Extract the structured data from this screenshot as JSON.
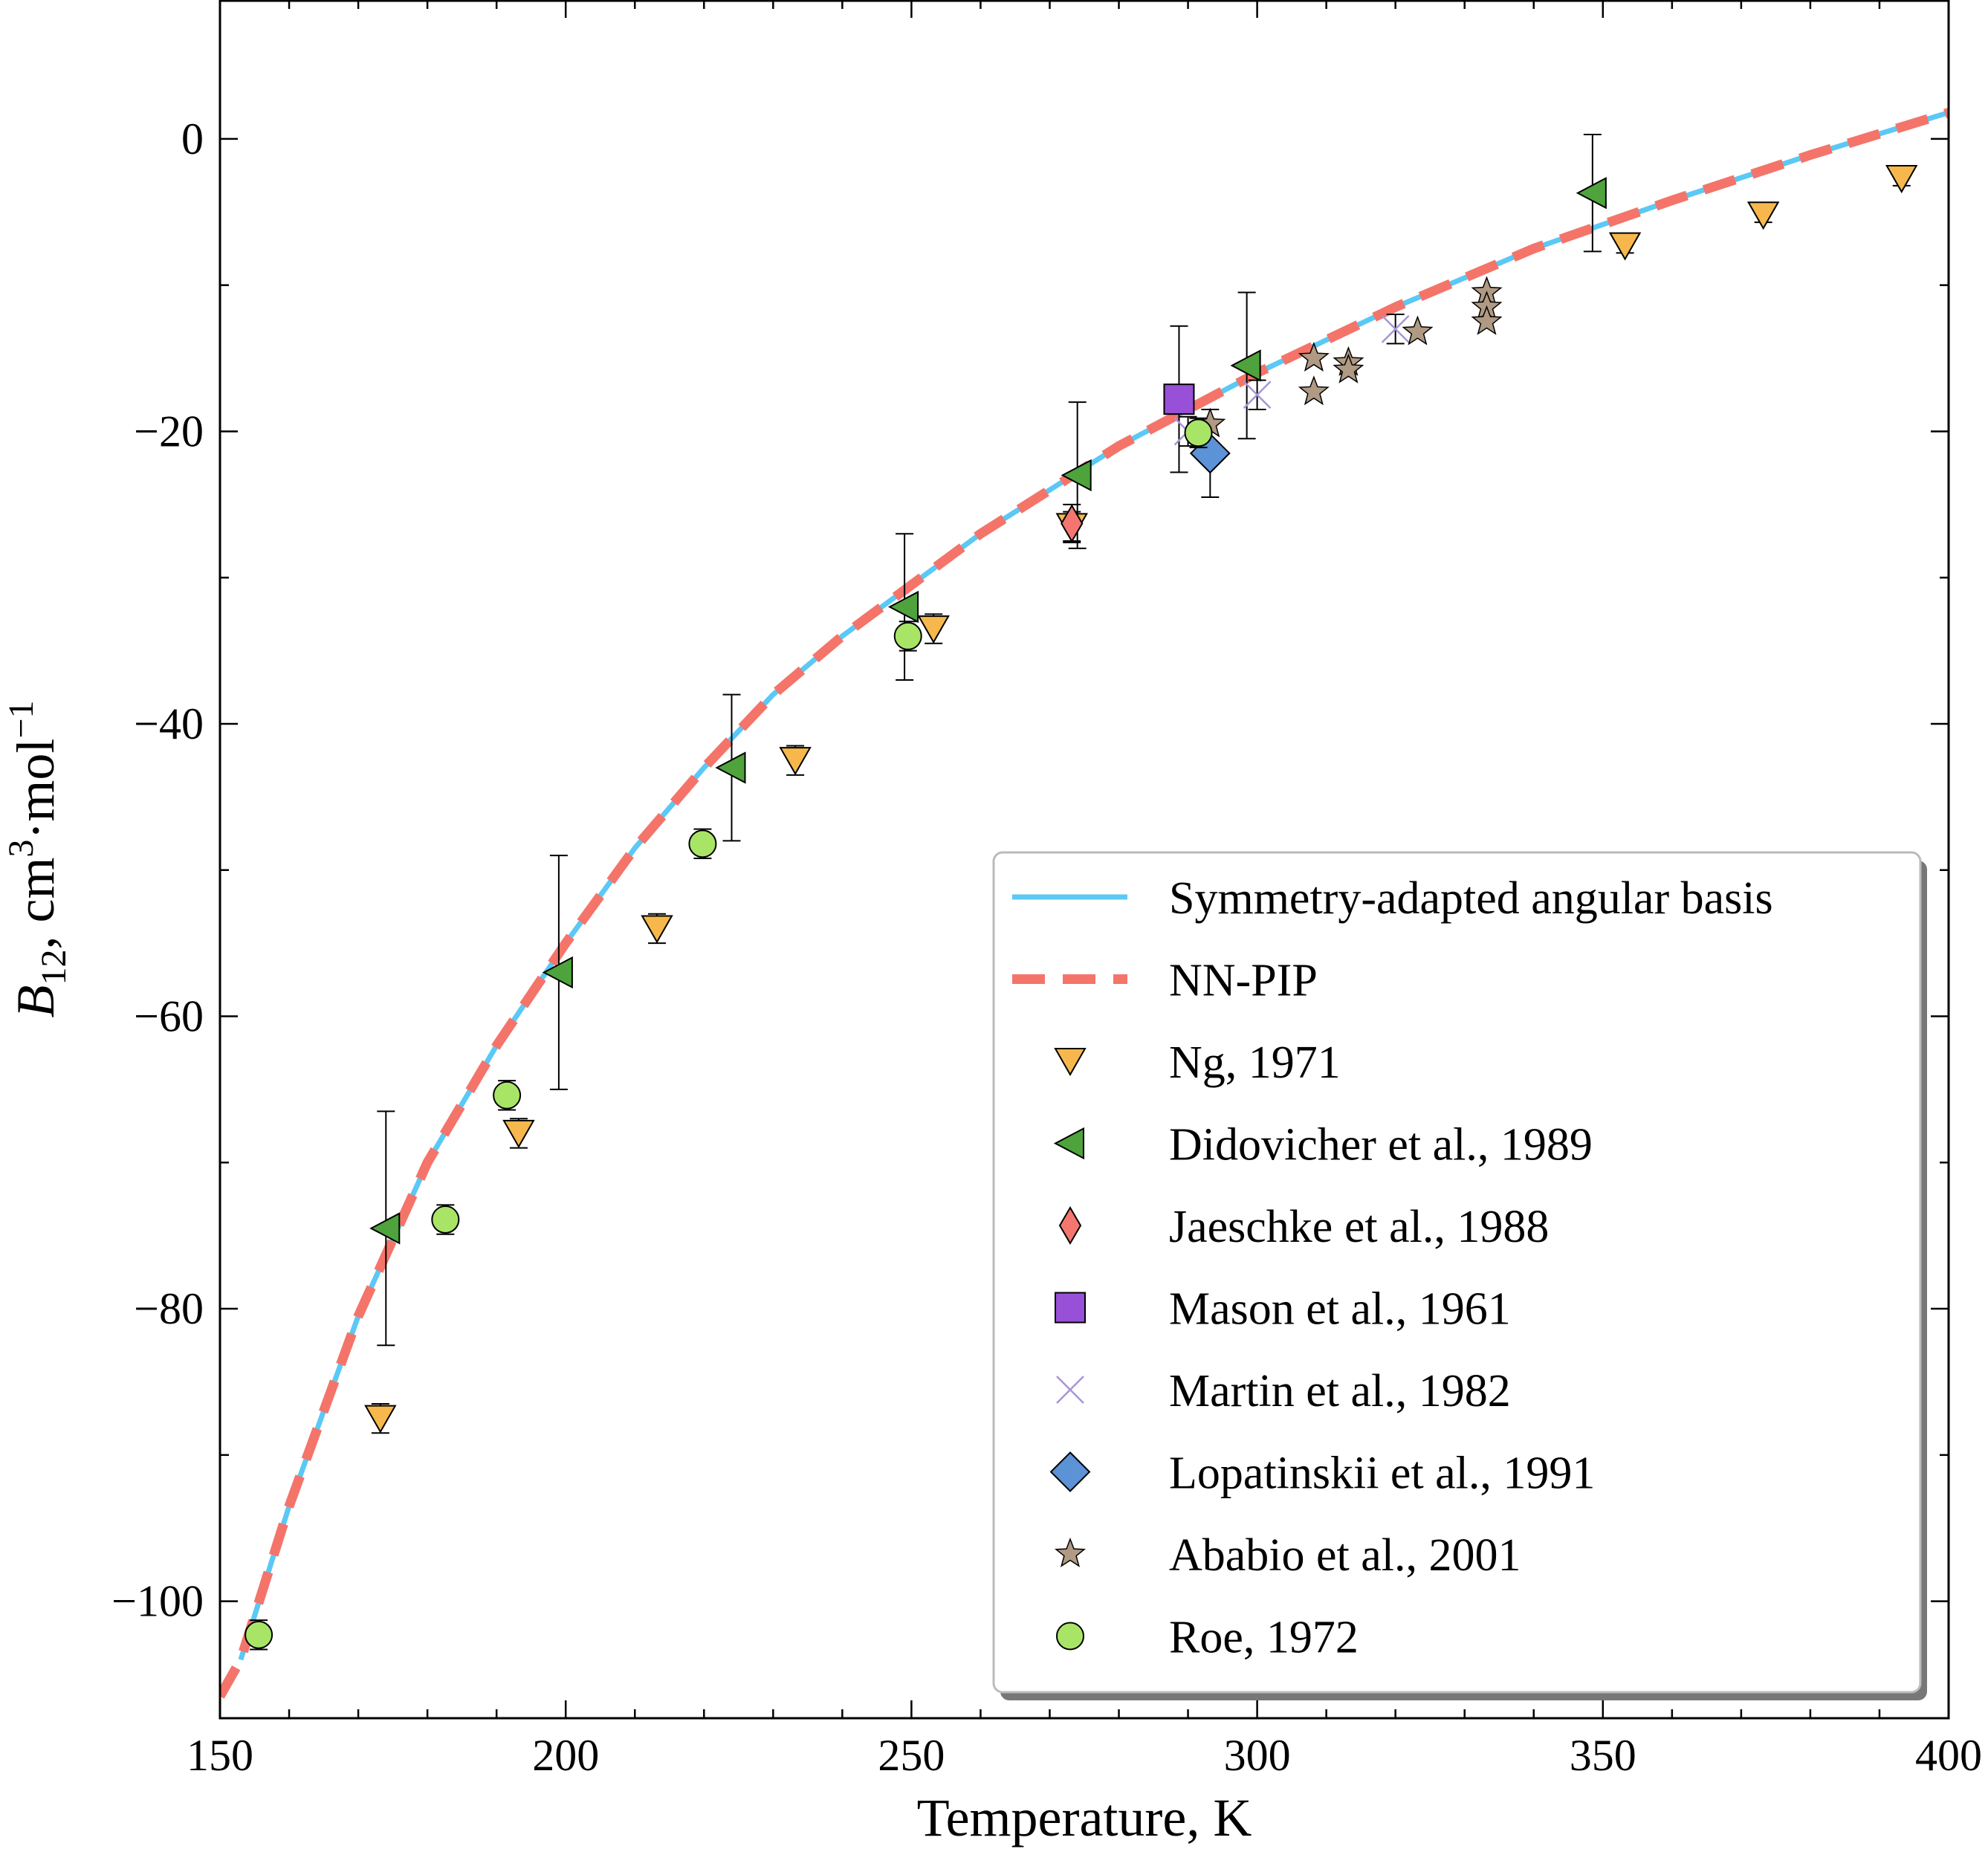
{
  "chart_data": {
    "type": "scatter",
    "xlabel": "Temperature, K",
    "ylabel_parts": {
      "symbol": "B",
      "subscript": "12",
      "unit_a": ", cm",
      "sup_a": "3",
      "unit_b": "·mol",
      "sup_b": "−1"
    },
    "xlim": [
      150,
      400
    ],
    "ylim": [
      -108,
      9.5
    ],
    "x_ticks": [
      150,
      200,
      250,
      300,
      350,
      400
    ],
    "x_tick_labels": [
      "150",
      "200",
      "250",
      "300",
      "350",
      "400"
    ],
    "y_ticks": [
      0,
      -20,
      -40,
      -60,
      -80,
      -100
    ],
    "y_tick_labels": [
      "0",
      "−20",
      "−40",
      "−60",
      "−80",
      "−100"
    ],
    "legend_position": "lower-right",
    "series": [
      {
        "name": "Symmetry-adapted angular basis",
        "kind": "line",
        "style": "solid",
        "color": "#5bc8f5",
        "x": [
          153,
          160,
          170,
          180,
          190,
          200,
          210,
          220,
          230,
          240,
          250,
          260,
          270,
          280,
          290,
          300,
          320,
          340,
          360,
          380,
          400
        ],
        "y": [
          -104,
          -93.5,
          -80.5,
          -70,
          -62,
          -55,
          -48.5,
          -43,
          -38,
          -34,
          -30.5,
          -27,
          -24,
          -21,
          -18.5,
          -16,
          -11.5,
          -7.5,
          -4.2,
          -1.1,
          1.8
        ]
      },
      {
        "name": "NN-PIP",
        "kind": "line",
        "style": "dashed",
        "color": "#f4746a",
        "x": [
          150,
          153,
          160,
          170,
          180,
          190,
          200,
          210,
          220,
          230,
          240,
          250,
          260,
          270,
          280,
          290,
          300,
          320,
          340,
          360,
          380,
          400
        ],
        "y": [
          -106.5,
          -104,
          -93.5,
          -80.5,
          -70,
          -62,
          -55,
          -48.5,
          -43,
          -38,
          -34,
          -30.5,
          -27,
          -24,
          -21,
          -18.5,
          -16,
          -11.5,
          -7.5,
          -4.2,
          -1.1,
          1.8
        ]
      },
      {
        "name": "Ng, 1971",
        "kind": "markers",
        "marker": "triangle-down",
        "color": "#f6b84c",
        "points": [
          {
            "x": 173.2,
            "y": -87.5,
            "err": 1.0
          },
          {
            "x": 193.2,
            "y": -68,
            "err": 1.0
          },
          {
            "x": 213.2,
            "y": -54,
            "err": 1.0
          },
          {
            "x": 233.2,
            "y": -42.5,
            "err": 1.0
          },
          {
            "x": 253.2,
            "y": -33.5,
            "err": 1.0
          },
          {
            "x": 273.2,
            "y": -26.5,
            "err": 1.0
          },
          {
            "x": 353.2,
            "y": -7.3,
            "err": 0.5
          },
          {
            "x": 373.2,
            "y": -5.2,
            "err": 0.5
          },
          {
            "x": 393.2,
            "y": -2.7,
            "err": 0.5
          }
        ]
      },
      {
        "name": "Didovicher et al., 1989",
        "kind": "markers",
        "marker": "triangle-left",
        "color": "#4ea33c",
        "points": [
          {
            "x": 174,
            "y": -74.5,
            "err": 8
          },
          {
            "x": 199,
            "y": -57,
            "err": 8
          },
          {
            "x": 224,
            "y": -43,
            "err": 5
          },
          {
            "x": 249,
            "y": -32,
            "err": 5
          },
          {
            "x": 274,
            "y": -23,
            "err": 5
          },
          {
            "x": 298.5,
            "y": -15.5,
            "err": 5
          },
          {
            "x": 348.5,
            "y": -3.7,
            "err": 4
          }
        ]
      },
      {
        "name": "Jaeschke et al., 1988",
        "kind": "markers",
        "marker": "thin-diamond",
        "color": "#f3766f",
        "points": [
          {
            "x": 273.2,
            "y": -26.3,
            "err": 1.3
          }
        ]
      },
      {
        "name": "Mason et al., 1961",
        "kind": "markers",
        "marker": "square",
        "color": "#9850d8",
        "points": [
          {
            "x": 288.7,
            "y": -17.8,
            "err": 5
          }
        ]
      },
      {
        "name": "Martin et al., 1982",
        "kind": "markers",
        "marker": "x",
        "color": "#a796d6",
        "points": [
          {
            "x": 290.0,
            "y": -20.0,
            "err": 1.0
          },
          {
            "x": 300.0,
            "y": -17.5,
            "err": 1.0
          },
          {
            "x": 320.0,
            "y": -13.0,
            "err": 1.0
          }
        ]
      },
      {
        "name": "Lopatinskii et al., 1991",
        "kind": "markers",
        "marker": "diamond",
        "color": "#5c92d6",
        "points": [
          {
            "x": 293.2,
            "y": -21.5,
            "err": 3
          }
        ]
      },
      {
        "name": "Ababio et al., 2001",
        "kind": "markers",
        "marker": "star",
        "color": "#b09a83",
        "points": [
          {
            "x": 293.2,
            "y": -19.5
          },
          {
            "x": 308.2,
            "y": -15.0
          },
          {
            "x": 308.2,
            "y": -17.3
          },
          {
            "x": 313.2,
            "y": -15.3
          },
          {
            "x": 313.2,
            "y": -15.8
          },
          {
            "x": 323.2,
            "y": -13.2
          },
          {
            "x": 333.2,
            "y": -10.5
          },
          {
            "x": 333.2,
            "y": -11.5
          },
          {
            "x": 333.2,
            "y": -12.5
          }
        ]
      },
      {
        "name": "Roe, 1972",
        "kind": "markers",
        "marker": "circle",
        "color": "#a8e566",
        "points": [
          {
            "x": 155.6,
            "y": -102.3,
            "err": 1.0
          },
          {
            "x": 182.6,
            "y": -73.9,
            "err": 1.0
          },
          {
            "x": 191.5,
            "y": -65.4,
            "err": 1.0
          },
          {
            "x": 219.8,
            "y": -48.2,
            "err": 1.0
          },
          {
            "x": 249.5,
            "y": -34.0,
            "err": 1.0
          },
          {
            "x": 291.5,
            "y": -20.1,
            "err": 1.0
          }
        ]
      }
    ]
  }
}
